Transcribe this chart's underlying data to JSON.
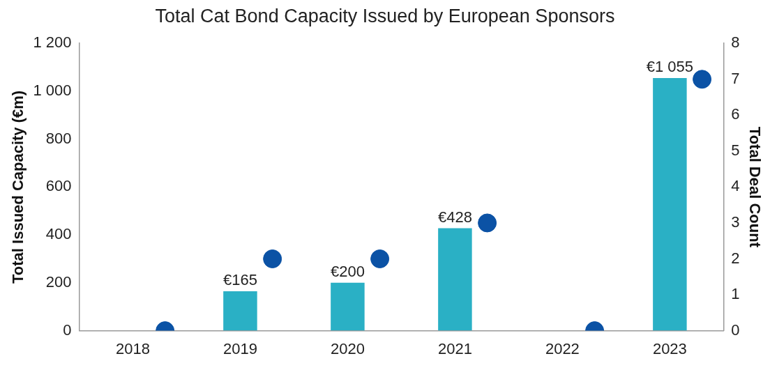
{
  "chart_data": {
    "type": "bar",
    "title": "Total Cat Bond Capacity Issued by European Sponsors",
    "ylabel": "Total Issued Capacity (€m)",
    "y2label": "Total Deal Count",
    "categories": [
      "2018",
      "2019",
      "2020",
      "2021",
      "2022",
      "2023"
    ],
    "series": [
      {
        "color": "#2ab0c5",
        "values": [
          0,
          165,
          200,
          428,
          0,
          1055
        ],
        "value_labels": [
          null,
          "€165",
          "€200",
          "€428",
          null,
          "€1 055"
        ]
      },
      {
        "type": "scatter",
        "axis": "y2",
        "color": "#0b52a5",
        "values": [
          0,
          2,
          2,
          3,
          0,
          7
        ]
      }
    ],
    "ylim": [
      0,
      1200
    ],
    "yticks": [
      0,
      200,
      400,
      600,
      800,
      {
        "value": 1000,
        "label": "1 000"
      },
      {
        "value": 1200,
        "label": "1 200"
      }
    ],
    "y2lim": [
      0,
      8
    ],
    "y2ticks": [
      0,
      1,
      2,
      3,
      4,
      5,
      6,
      7,
      8
    ],
    "grid": false,
    "legend": false,
    "marker": "circle"
  }
}
